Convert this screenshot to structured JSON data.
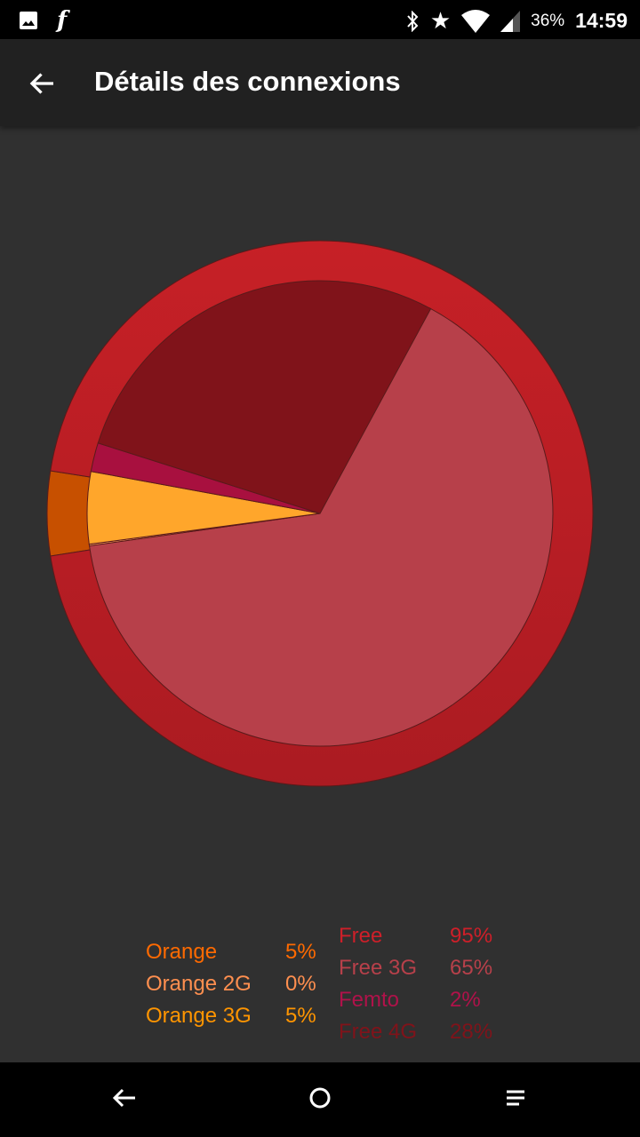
{
  "status_bar": {
    "icons_left": [
      "image-icon",
      "flash-f-icon"
    ],
    "icons_right": [
      "bluetooth-icon",
      "star-icon",
      "wifi-icon",
      "signal-icon"
    ],
    "battery": "36%",
    "time": "14:59"
  },
  "app_bar": {
    "title": "Détails des connexions",
    "back_icon": "arrow-left-icon"
  },
  "chart_data": {
    "type": "pie",
    "outer_ring": [
      {
        "name": "Orange",
        "value": 5,
        "color": "#C75000"
      },
      {
        "name": "Free",
        "value": 95,
        "color": "#C21F26"
      }
    ],
    "inner_pie": [
      {
        "name": "Free 3G",
        "value": 65,
        "color": "#B7404A"
      },
      {
        "name": "Orange 2G",
        "value": 0,
        "color": "#FFA060"
      },
      {
        "name": "Orange 3G",
        "value": 5,
        "color": "#FFA62B"
      },
      {
        "name": "Femto",
        "value": 2,
        "color": "#A8103F"
      },
      {
        "name": "Free 4G",
        "value": 28,
        "color": "#80131A"
      }
    ]
  },
  "legend": {
    "orange": [
      {
        "label": "Orange",
        "value": "5%",
        "color": "#FF6A00"
      },
      {
        "label": "Orange 2G",
        "value": "0%",
        "color": "#FF8F4F"
      },
      {
        "label": "Orange 3G",
        "value": "5%",
        "color": "#FF9500"
      }
    ],
    "free": [
      {
        "label": "Free",
        "value": "95%",
        "color": "#CE1F29"
      },
      {
        "label": "Free 3G",
        "value": "65%",
        "color": "#B7404A"
      },
      {
        "label": "Femto",
        "value": "2%",
        "color": "#B0124A"
      },
      {
        "label": "Free 4G",
        "value": "28%",
        "color": "#80131A"
      }
    ]
  },
  "nav_bar": {
    "buttons": [
      "back-icon",
      "home-icon",
      "menu-icon"
    ]
  }
}
